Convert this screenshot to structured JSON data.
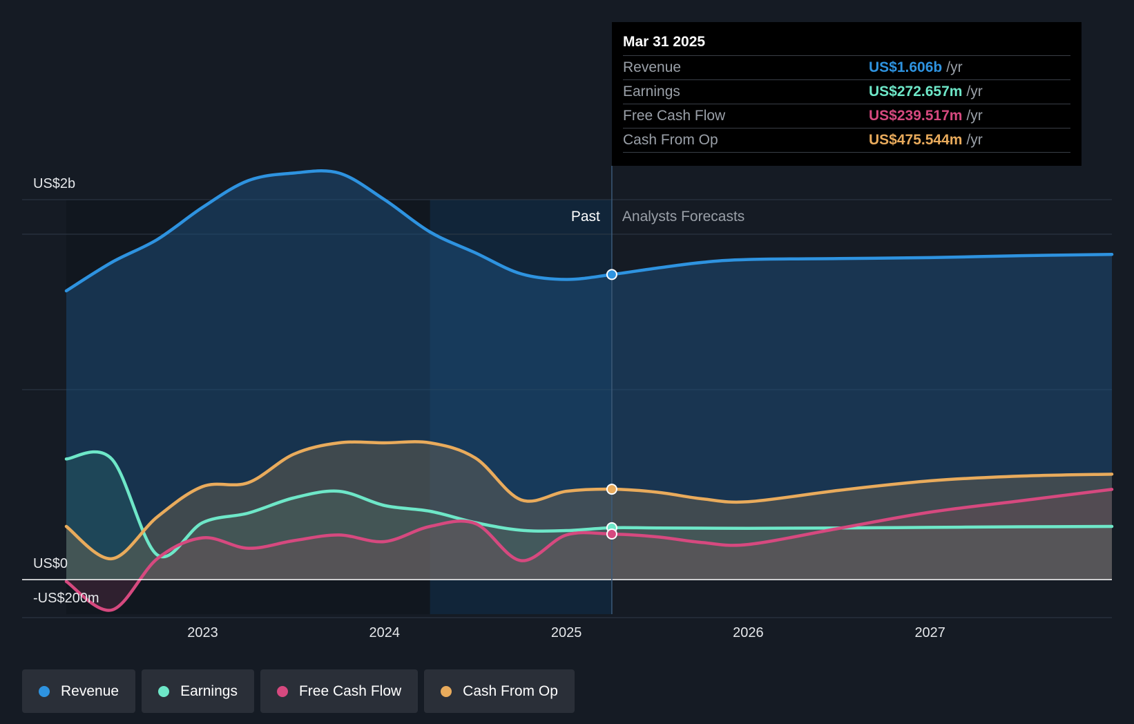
{
  "tooltip": {
    "date": "Mar 31 2025",
    "rows": [
      {
        "name": "Revenue",
        "value": "US$1.606b",
        "unit": "/yr",
        "color": "#2e93e0"
      },
      {
        "name": "Earnings",
        "value": "US$272.657m",
        "unit": "/yr",
        "color": "#6ee7c8"
      },
      {
        "name": "Free Cash Flow",
        "value": "US$239.517m",
        "unit": "/yr",
        "color": "#d6497f"
      },
      {
        "name": "Cash From Op",
        "value": "US$475.544m",
        "unit": "/yr",
        "color": "#e9ab5c"
      }
    ]
  },
  "regions": {
    "past": "Past",
    "forecast": "Analysts Forecasts"
  },
  "legend": [
    {
      "label": "Revenue",
      "color": "#2e93e0"
    },
    {
      "label": "Earnings",
      "color": "#6ee7c8"
    },
    {
      "label": "Free Cash Flow",
      "color": "#d6497f"
    },
    {
      "label": "Cash From Op",
      "color": "#e9ab5c"
    }
  ],
  "chart_data": {
    "type": "area",
    "title": "",
    "xlabel": "",
    "ylabel": "",
    "x_ticks": [
      "2023",
      "2024",
      "2025",
      "2026",
      "2027"
    ],
    "y_labels": [
      "US$2b",
      "US$0",
      "-US$200m"
    ],
    "xlim": [
      2022.25,
      2028.0
    ],
    "ylim": [
      -200,
      2200
    ],
    "past_end": 2025.25,
    "highlight_start": 2024.25,
    "series": [
      {
        "name": "Revenue",
        "color": "#2e93e0",
        "points": [
          [
            2022.25,
            1520
          ],
          [
            2022.5,
            1670
          ],
          [
            2022.75,
            1790
          ],
          [
            2023.0,
            1960
          ],
          [
            2023.25,
            2100
          ],
          [
            2023.5,
            2140
          ],
          [
            2023.75,
            2140
          ],
          [
            2024.0,
            2000
          ],
          [
            2024.25,
            1830
          ],
          [
            2024.5,
            1720
          ],
          [
            2024.75,
            1610
          ],
          [
            2025.0,
            1580
          ],
          [
            2025.25,
            1606
          ],
          [
            2025.5,
            1640
          ],
          [
            2025.75,
            1670
          ],
          [
            2026.0,
            1685
          ],
          [
            2026.5,
            1690
          ],
          [
            2027.0,
            1695
          ],
          [
            2027.5,
            1705
          ],
          [
            2028.0,
            1712
          ]
        ]
      },
      {
        "name": "Earnings",
        "color": "#6ee7c8",
        "points": [
          [
            2022.25,
            635
          ],
          [
            2022.5,
            635
          ],
          [
            2022.75,
            130
          ],
          [
            2023.0,
            300
          ],
          [
            2023.25,
            350
          ],
          [
            2023.5,
            430
          ],
          [
            2023.75,
            465
          ],
          [
            2024.0,
            390
          ],
          [
            2024.25,
            360
          ],
          [
            2024.5,
            300
          ],
          [
            2024.75,
            260
          ],
          [
            2025.0,
            258
          ],
          [
            2025.25,
            273
          ],
          [
            2025.5,
            272
          ],
          [
            2026.0,
            270
          ],
          [
            2026.5,
            272
          ],
          [
            2027.0,
            275
          ],
          [
            2027.5,
            278
          ],
          [
            2028.0,
            280
          ]
        ]
      },
      {
        "name": "Free Cash Flow",
        "color": "#d6497f",
        "points": [
          [
            2022.25,
            -10
          ],
          [
            2022.5,
            -160
          ],
          [
            2022.75,
            110
          ],
          [
            2023.0,
            220
          ],
          [
            2023.25,
            165
          ],
          [
            2023.5,
            205
          ],
          [
            2023.75,
            235
          ],
          [
            2024.0,
            200
          ],
          [
            2024.25,
            280
          ],
          [
            2024.5,
            295
          ],
          [
            2024.75,
            100
          ],
          [
            2025.0,
            235
          ],
          [
            2025.25,
            240
          ],
          [
            2025.5,
            225
          ],
          [
            2025.75,
            195
          ],
          [
            2026.0,
            185
          ],
          [
            2026.5,
            270
          ],
          [
            2027.0,
            355
          ],
          [
            2027.5,
            415
          ],
          [
            2028.0,
            475
          ]
        ]
      },
      {
        "name": "Cash From Op",
        "color": "#e9ab5c",
        "points": [
          [
            2022.25,
            280
          ],
          [
            2022.5,
            110
          ],
          [
            2022.75,
            330
          ],
          [
            2023.0,
            490
          ],
          [
            2023.25,
            510
          ],
          [
            2023.5,
            660
          ],
          [
            2023.75,
            720
          ],
          [
            2024.0,
            720
          ],
          [
            2024.25,
            720
          ],
          [
            2024.5,
            640
          ],
          [
            2024.75,
            420
          ],
          [
            2025.0,
            465
          ],
          [
            2025.25,
            476
          ],
          [
            2025.5,
            460
          ],
          [
            2025.75,
            425
          ],
          [
            2026.0,
            410
          ],
          [
            2026.5,
            470
          ],
          [
            2027.0,
            520
          ],
          [
            2027.5,
            545
          ],
          [
            2028.0,
            555
          ]
        ]
      }
    ]
  }
}
